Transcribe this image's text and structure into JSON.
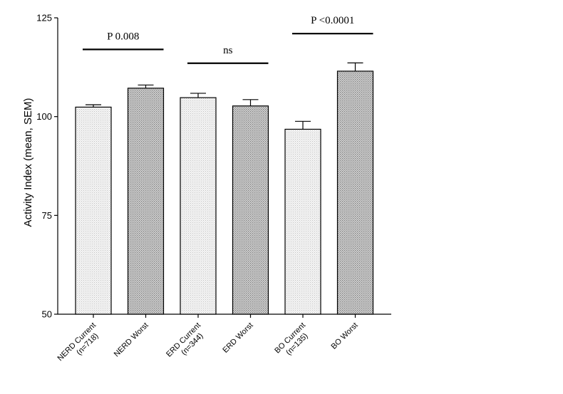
{
  "chart_data": {
    "type": "bar",
    "title": "",
    "xlabel": "",
    "ylabel": "Activity Index (mean, SEM)",
    "ylim": [
      50,
      125
    ],
    "yticks": [
      50,
      75,
      100,
      125
    ],
    "grid": false,
    "categories": [
      [
        "NERD Current",
        "(n=718)"
      ],
      [
        "NERD Worst"
      ],
      [
        "ERD Current",
        "(n=344)"
      ],
      [
        "ERD Worst"
      ],
      [
        "BO Current",
        "(n=135)"
      ],
      [
        "BO Worst"
      ]
    ],
    "values": [
      102.4,
      107.2,
      104.8,
      102.7,
      96.8,
      111.5
    ],
    "errors": [
      0.6,
      0.8,
      1.1,
      1.6,
      2.0,
      2.1
    ],
    "patterns": [
      "light",
      "dark",
      "light",
      "dark",
      "light",
      "dark"
    ],
    "annotations": [
      {
        "text": "P 0.008",
        "from": 0,
        "to": 1,
        "y": 117
      },
      {
        "text": "ns",
        "from": 2,
        "to": 3,
        "y": 113.5
      },
      {
        "text": "P <0.0001",
        "from": 4,
        "to": 5,
        "y": 121
      }
    ]
  }
}
